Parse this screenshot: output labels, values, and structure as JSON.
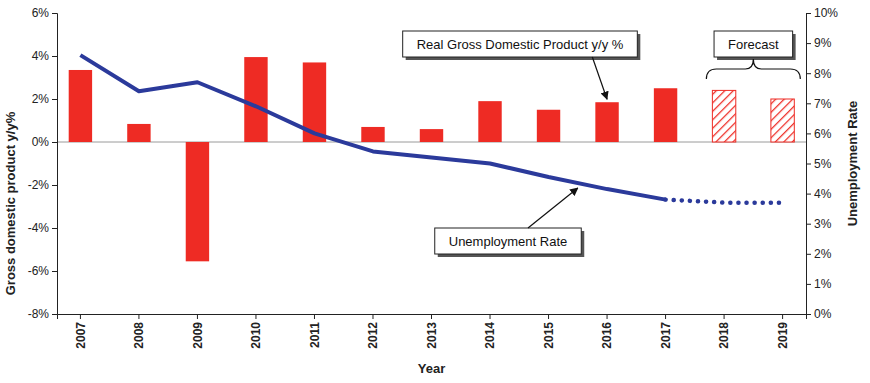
{
  "chart_data": {
    "type": "bar",
    "categories": [
      "2007",
      "2008",
      "2009",
      "2010",
      "2011",
      "2012",
      "2013",
      "2014",
      "2015",
      "2016",
      "2017",
      "2018",
      "2019"
    ],
    "series": [
      {
        "name": "Real Gross Domestic Product y/y %",
        "type": "bar",
        "color": "#ee2b24",
        "values": [
          3.35,
          0.84,
          -5.55,
          3.95,
          3.7,
          0.7,
          0.6,
          1.9,
          1.5,
          1.85,
          2.5,
          2.4,
          2.0
        ]
      },
      {
        "name": "Unemployment Rate",
        "type": "line",
        "axis": "y2",
        "color": "#2b3a9b",
        "values": [
          8.6,
          7.4,
          7.7,
          6.9,
          6.0,
          5.4,
          5.2,
          5.0,
          4.55,
          4.15,
          3.8,
          3.7,
          3.7
        ]
      }
    ],
    "x_label": "Year",
    "y_label": "Gross domestic product y/y%",
    "y2_label": "Unemployment Rate",
    "ylim": [
      -8,
      6
    ],
    "yticks": [
      {
        "value": -8,
        "label": "-8%"
      },
      {
        "value": -6,
        "label": "-6%"
      },
      {
        "value": -4,
        "label": "-4%"
      },
      {
        "value": -2,
        "label": "-2%"
      },
      {
        "value": 0,
        "label": "0%"
      },
      {
        "value": 2,
        "label": "2%"
      },
      {
        "value": 4,
        "label": "4%"
      },
      {
        "value": 6,
        "label": "6%"
      }
    ],
    "y2lim": [
      0,
      10
    ],
    "y2ticks": [
      {
        "value": 0,
        "label": "0%"
      },
      {
        "value": 1,
        "label": "1%"
      },
      {
        "value": 2,
        "label": "2%"
      },
      {
        "value": 3,
        "label": "3%"
      },
      {
        "value": 4,
        "label": "4%"
      },
      {
        "value": 5,
        "label": "5%"
      },
      {
        "value": 6,
        "label": "6%"
      },
      {
        "value": 7,
        "label": "7%"
      },
      {
        "value": 8,
        "label": "8%"
      },
      {
        "value": 9,
        "label": "9%"
      },
      {
        "value": 10,
        "label": "10%"
      }
    ],
    "annotations": [
      {
        "text": "Forecast",
        "from": "2018",
        "to": "2019"
      }
    ],
    "grid": false
  }
}
